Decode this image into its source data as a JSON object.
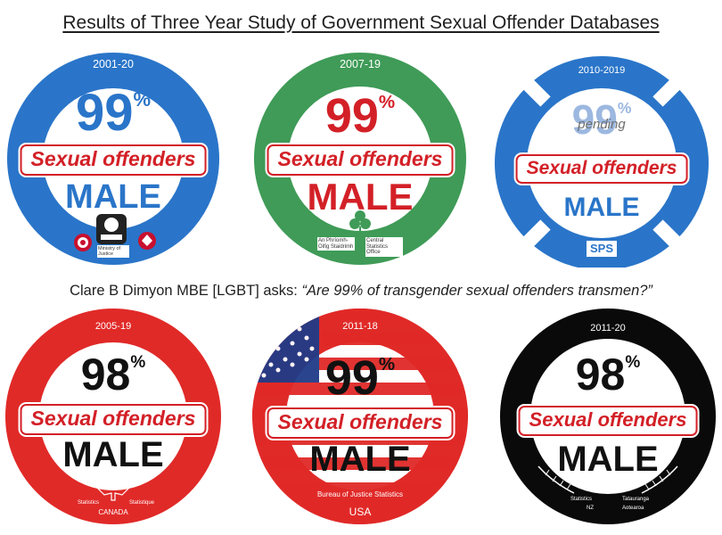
{
  "title": "Results of Three Year Study of Government Sexual Offender Databases",
  "subtitle": {
    "prefix": "Clare B Dimyon MBE [LGBT] asks: ",
    "quote": "“Are 99% of transgender sexual offenders transmen?”"
  },
  "colors": {
    "blue": "#2a75c9",
    "green": "#3f9b57",
    "red": "#e02a28",
    "black": "#0a0a0a",
    "label_red": "#d32027"
  },
  "badges": [
    {
      "years": "2001-20",
      "percent": "99",
      "percent_sign": "%",
      "label": "Sexual offenders",
      "sex": "MALE",
      "source": "Ministry of Justice",
      "level": 0.99
    },
    {
      "years": "2007-19",
      "percent": "99",
      "percent_sign": "%",
      "label": "Sexual offenders",
      "sex": "MALE",
      "source_left": "An Phríomh-Oifig Staidrimh",
      "source_right": "Central Statistics Office",
      "level": 0.99
    },
    {
      "years": "2010-2019",
      "percent": "99",
      "percent_sign": "%",
      "status": "pending",
      "label": "Sexual offenders",
      "sex": "MALE",
      "source": "SPS",
      "level": 0.99
    },
    {
      "years": "2005-19",
      "percent": "98",
      "percent_sign": "%",
      "label": "Sexual offenders",
      "sex": "MALE",
      "source_left": "Statistics",
      "source_right": "Statistique",
      "country": "CANADA",
      "level": 0.98
    },
    {
      "years": "2011-18",
      "percent": "99",
      "percent_sign": "%",
      "label": "Sexual offenders",
      "sex": "MALE",
      "source": "Bureau of Justice Statistics",
      "country": "USA",
      "level": 0.99
    },
    {
      "years": "2011-20",
      "percent": "98",
      "percent_sign": "%",
      "label": "Sexual offenders",
      "sex": "MALE",
      "source_left": "Statistics",
      "source_right": "Tatauranga",
      "country_left": "NZ",
      "country_right": "Aotearoa",
      "level": 0.98
    }
  ]
}
